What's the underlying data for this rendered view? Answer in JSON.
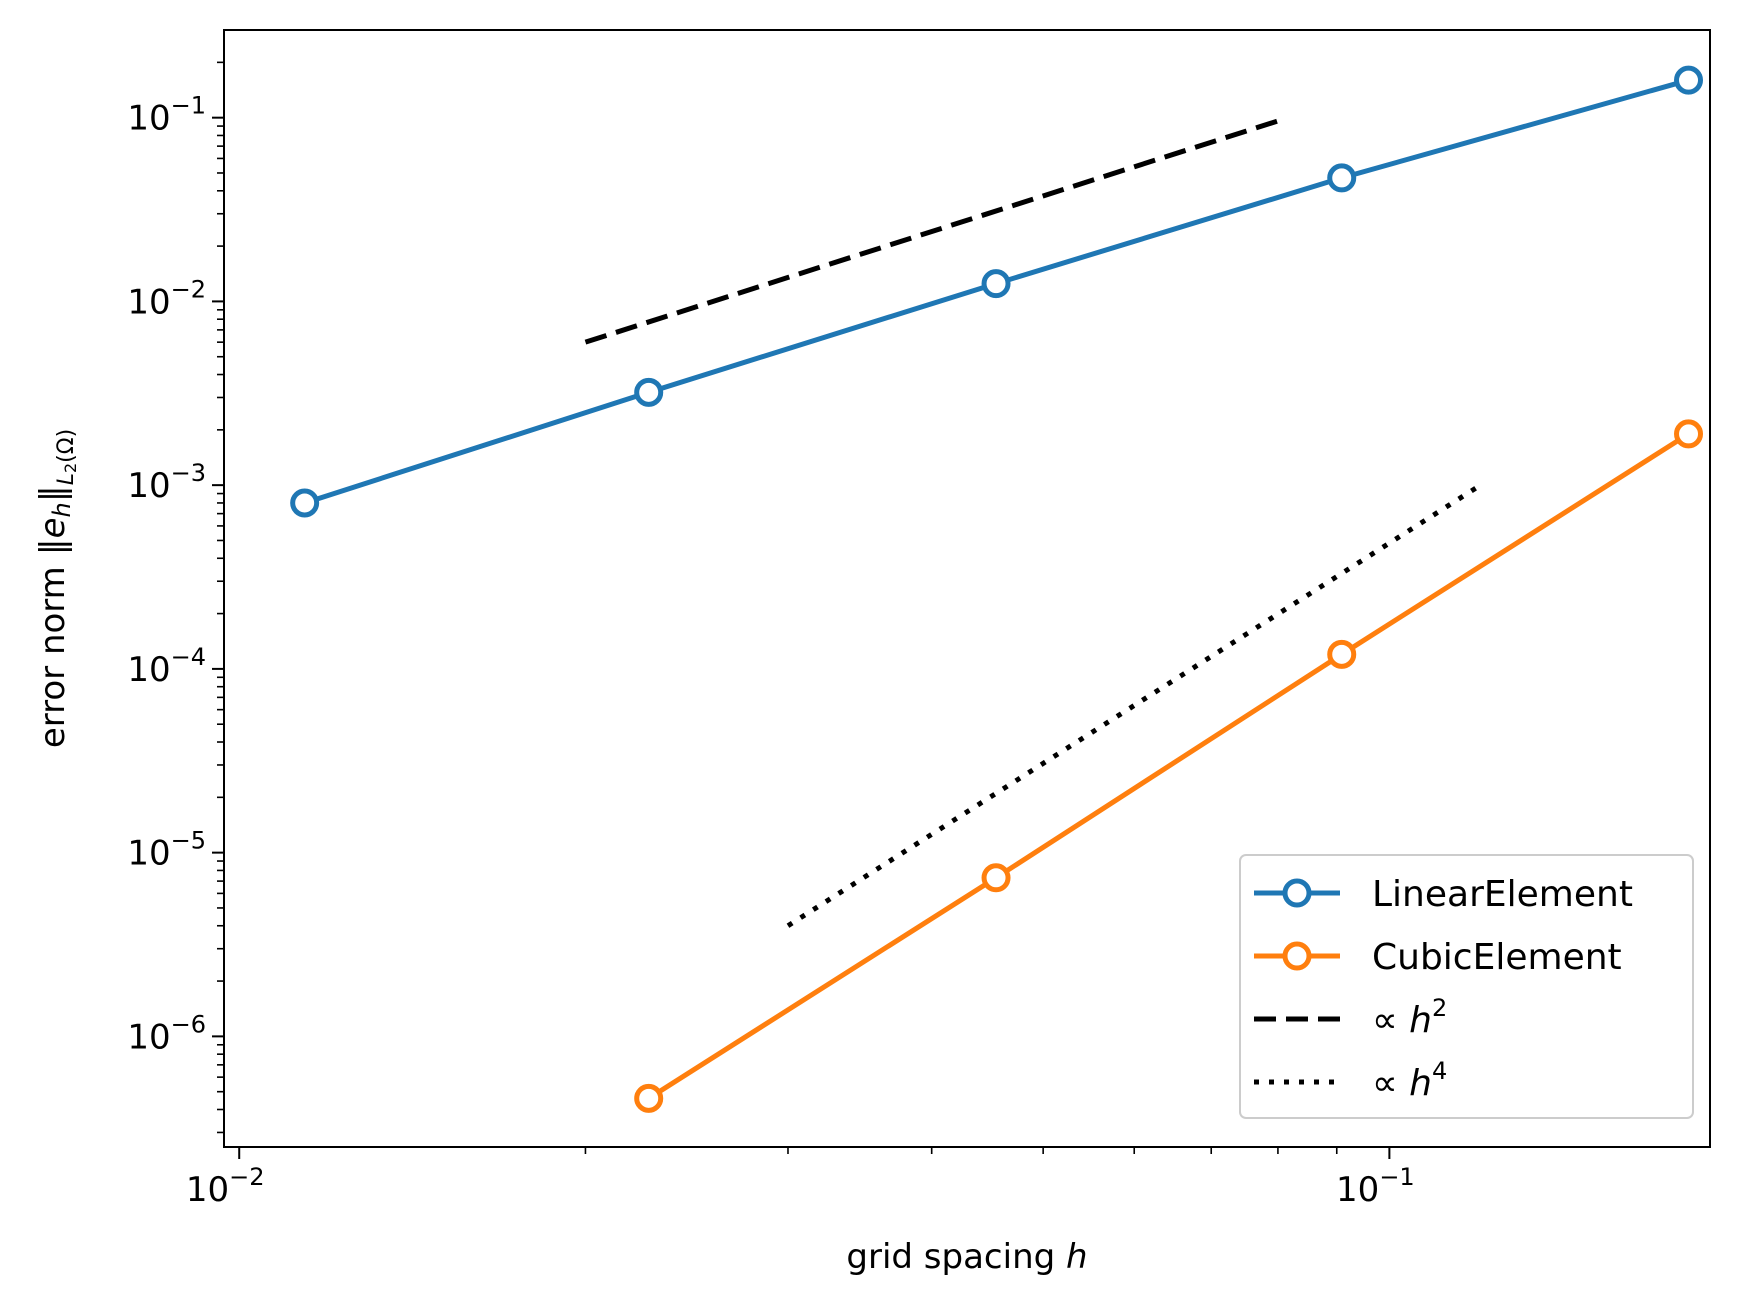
{
  "chart_data": {
    "type": "line",
    "x_scale": "log",
    "y_scale": "log",
    "xlim": [
      0.0097,
      0.19
    ],
    "ylim": [
      2.5e-07,
      0.3
    ],
    "grid": false,
    "legend_position": "bottom-right",
    "xlabel": {
      "text": "grid spacing ",
      "math": "h"
    },
    "ylabel": {
      "text": "error norm ",
      "math": "‖e",
      "math_sub": "h",
      "math_end": "‖",
      "subscript": "L",
      "subscript2": "2",
      "subscript3": "(Ω)"
    },
    "x_ticks": [
      {
        "value": 0.01,
        "base": "10",
        "exp": "−2"
      },
      {
        "value": 0.1,
        "base": "10",
        "exp": "−1"
      }
    ],
    "y_ticks": [
      {
        "value": 1e-06,
        "base": "10",
        "exp": "−6"
      },
      {
        "value": 1e-05,
        "base": "10",
        "exp": "−5"
      },
      {
        "value": 0.0001,
        "base": "10",
        "exp": "−4"
      },
      {
        "value": 0.001,
        "base": "10",
        "exp": "−3"
      },
      {
        "value": 0.01,
        "base": "10",
        "exp": "−2"
      },
      {
        "value": 0.1,
        "base": "10",
        "exp": "−1"
      }
    ],
    "series": [
      {
        "name": "LinearElement",
        "color": "#1f77b4",
        "style": "solid-marker",
        "x": [
          0.0114,
          0.0227,
          0.0455,
          0.0909,
          0.182
        ],
        "y": [
          0.0008,
          0.0032,
          0.0125,
          0.047,
          0.16
        ]
      },
      {
        "name": "CubicElement",
        "color": "#ff7f0e",
        "style": "solid-marker",
        "x": [
          0.0227,
          0.0455,
          0.0909,
          0.182
        ],
        "y": [
          4.6e-07,
          7.3e-06,
          0.00012,
          0.0019
        ]
      },
      {
        "name": "∝ h²",
        "legend_prefix": "∝ ",
        "legend_math": "h",
        "legend_sup": "2",
        "color": "#000000",
        "style": "dashed",
        "x": [
          0.02,
          0.08
        ],
        "y": [
          0.006,
          0.096
        ]
      },
      {
        "name": "∝ h⁴",
        "legend_prefix": "∝ ",
        "legend_math": "h",
        "legend_sup": "4",
        "color": "#000000",
        "style": "dotted",
        "x": [
          0.03,
          0.12
        ],
        "y": [
          4e-06,
          0.001
        ]
      }
    ]
  }
}
